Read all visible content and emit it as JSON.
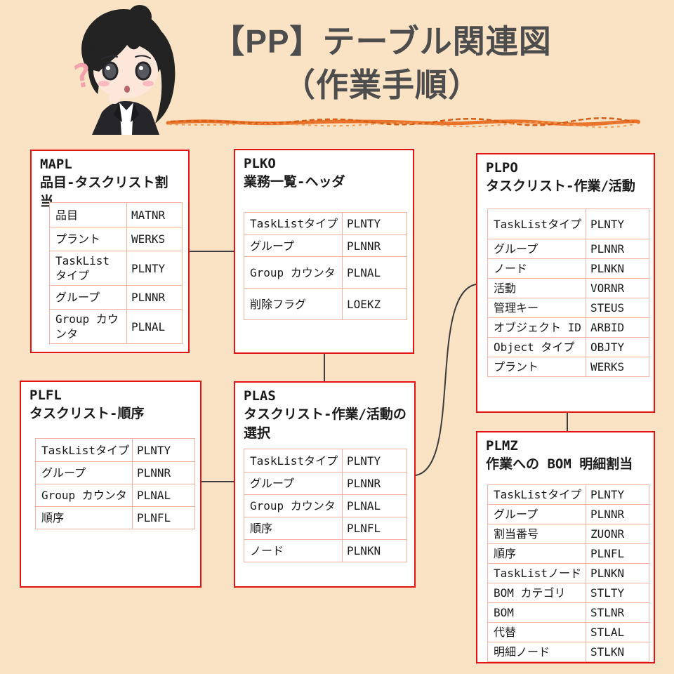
{
  "header": {
    "title_line1": "【PP】テーブル関連図",
    "title_line2": "（作業手順）"
  },
  "icons": {
    "avatar": "thinking-girl-avatar",
    "question_mark": "?"
  },
  "colors": {
    "background": "#fae3c4",
    "box_fill": "#ffffff",
    "box_border": "#e31414",
    "table_grid": "#f2b29d",
    "title_text": "#4d4d4d",
    "underline_orange": "#e8742c",
    "connector": "#3d3d3d"
  },
  "tables": [
    {
      "name": "MAPL",
      "subtitle": "品目-タスクリスト割当",
      "rows": [
        [
          "品目",
          "MATNR"
        ],
        [
          "プラント",
          "WERKS"
        ],
        [
          "TaskList タイプ",
          "PLNTY"
        ],
        [
          "グループ",
          "PLNNR"
        ],
        [
          "Group カウンタ",
          "PLNAL"
        ]
      ]
    },
    {
      "name": "PLKO",
      "subtitle": "業務一覧-ヘッダ",
      "rows": [
        [
          "TaskListタイプ",
          "PLNTY"
        ],
        [
          "グループ",
          "PLNNR"
        ],
        [
          "Group カウンタ",
          "PLNAL"
        ],
        [
          "削除フラグ",
          "LOEKZ"
        ]
      ]
    },
    {
      "name": "PLPO",
      "subtitle": "タスクリスト-作業/活動",
      "rows": [
        [
          "TaskListタイプ",
          "PLNTY"
        ],
        [
          "グループ",
          "PLNNR"
        ],
        [
          "ノード",
          "PLNKN"
        ],
        [
          "活動",
          "VORNR"
        ],
        [
          "管理キー",
          "STEUS"
        ],
        [
          "オブジェクト ID",
          "ARBID"
        ],
        [
          "Object タイプ",
          "OBJTY"
        ],
        [
          "プラント",
          "WERKS"
        ]
      ]
    },
    {
      "name": "PLFL",
      "subtitle": "タスクリスト-順序",
      "rows": [
        [
          "TaskListタイプ",
          "PLNTY"
        ],
        [
          "グループ",
          "PLNNR"
        ],
        [
          "Group カウンタ",
          "PLNAL"
        ],
        [
          "順序",
          "PLNFL"
        ]
      ]
    },
    {
      "name": "PLAS",
      "subtitle": "タスクリスト-作業/活動の選択",
      "rows": [
        [
          "TaskListタイプ",
          "PLNTY"
        ],
        [
          "グループ",
          "PLNNR"
        ],
        [
          "Group カウンタ",
          "PLNAL"
        ],
        [
          "順序",
          "PLNFL"
        ],
        [
          "ノード",
          "PLNKN"
        ]
      ]
    },
    {
      "name": "PLMZ",
      "subtitle": "作業への BOM 明細割当",
      "rows": [
        [
          "TaskListタイプ",
          "PLNTY"
        ],
        [
          "グループ",
          "PLNNR"
        ],
        [
          "割当番号",
          "ZUONR"
        ],
        [
          "順序",
          "PLNFL"
        ],
        [
          "TaskListノード",
          "PLNKN"
        ],
        [
          "BOM カテゴリ",
          "STLTY"
        ],
        [
          "BOM",
          "STLNR"
        ],
        [
          "代替",
          "STLAL"
        ],
        [
          "明細ノード",
          "STLKN"
        ]
      ]
    }
  ],
  "connections": [
    {
      "from": "MAPL",
      "to": "PLKO"
    },
    {
      "from": "PLKO",
      "to": "PLAS"
    },
    {
      "from": "PLFL",
      "to": "PLAS"
    },
    {
      "from": "PLAS",
      "to": "PLPO"
    },
    {
      "from": "PLPO",
      "to": "PLMZ"
    }
  ]
}
